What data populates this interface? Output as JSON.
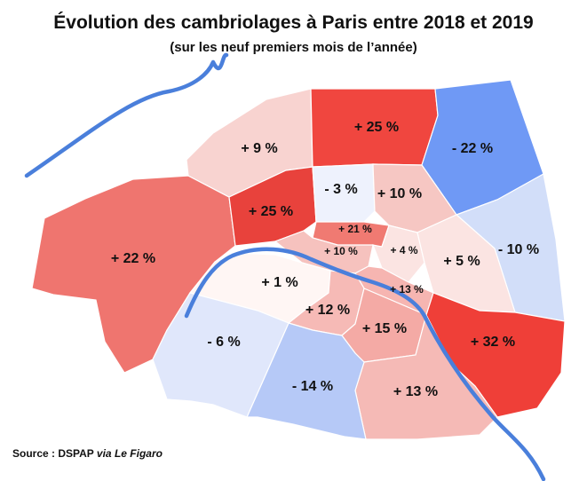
{
  "title": "Évolution des cambriolages à Paris entre 2018 et 2019",
  "subtitle": "(sur les neuf premiers mois de l’année)",
  "source": {
    "prefix": "Source : DSPAP ",
    "via": "via Le Figaro"
  },
  "colors": {
    "strong_increase": "#f0463f",
    "increase": "#f07a72",
    "moderate_increase": "#f6b5b1",
    "slight_increase": "#fbe4e2",
    "decrease": "#d2def9",
    "strong_decrease": "#6f99f5",
    "river": "#4a7fdb"
  },
  "arrondissements": [
    {
      "id": "1",
      "label": "+ 10 %",
      "change": 10,
      "fill": "#f6c2be"
    },
    {
      "id": "2",
      "label": "+ 21 %",
      "change": 21,
      "fill": "#f07a72"
    },
    {
      "id": "3",
      "label": "+ 4 %",
      "change": 4,
      "fill": "#fbe4e2"
    },
    {
      "id": "4",
      "label": "+ 13 %",
      "change": 13,
      "fill": "#f6b5b1"
    },
    {
      "id": "5",
      "label": "+ 15 %",
      "change": 15,
      "fill": "#f4aaa5"
    },
    {
      "id": "6",
      "label": "+ 12 %",
      "change": 12,
      "fill": "#f6bab6"
    },
    {
      "id": "7",
      "label": "+ 1 %",
      "change": 1,
      "fill": "#fff6f4"
    },
    {
      "id": "8",
      "label": "+ 25 %",
      "change": 25,
      "fill": "#e8423c"
    },
    {
      "id": "9",
      "label": "- 3 %",
      "change": -3,
      "fill": "#eef2fd"
    },
    {
      "id": "10",
      "label": "+ 10 %",
      "change": 10,
      "fill": "#f6c7c3"
    },
    {
      "id": "11",
      "label": "+ 5 %",
      "change": 5,
      "fill": "#fbe4e2"
    },
    {
      "id": "12",
      "label": "+ 32 %",
      "change": 32,
      "fill": "#ef3f38"
    },
    {
      "id": "13",
      "label": "+ 13 %",
      "change": 13,
      "fill": "#f5bab6"
    },
    {
      "id": "14",
      "label": "- 14 %",
      "change": -14,
      "fill": "#b6c9f7"
    },
    {
      "id": "15",
      "label": "- 6 %",
      "change": -6,
      "fill": "#e0e7fb"
    },
    {
      "id": "16",
      "label": "+ 22 %",
      "change": 22,
      "fill": "#ef756f"
    },
    {
      "id": "17",
      "label": "+ 9 %",
      "change": 9,
      "fill": "#f8d3d0"
    },
    {
      "id": "18",
      "label": "+ 25 %",
      "change": 25,
      "fill": "#f0463f"
    },
    {
      "id": "19",
      "label": "- 22 %",
      "change": -22,
      "fill": "#6f99f5"
    },
    {
      "id": "20",
      "label": "- 10 %",
      "change": -10,
      "fill": "#d2def9"
    }
  ]
}
